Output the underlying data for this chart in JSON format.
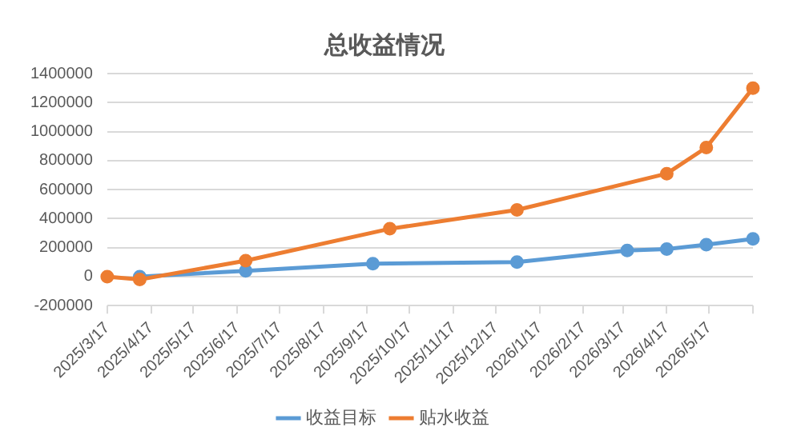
{
  "chart_data": {
    "type": "line",
    "title": "总收益情况",
    "series": [
      {
        "name": "收益目标",
        "color": "#5b9bd5",
        "x": [
          "2025-04-09",
          "2025-06-23",
          "2025-09-21",
          "2026-01-01",
          "2026-03-20",
          "2026-04-17",
          "2026-05-15",
          "2026-06-17"
        ],
        "values": [
          0,
          40000,
          90000,
          100000,
          180000,
          190000,
          220000,
          260000
        ]
      },
      {
        "name": "贴水收益",
        "color": "#ed7d31",
        "x": [
          "2025-03-17",
          "2025-04-09",
          "2025-06-23",
          "2025-10-03",
          "2026-01-01",
          "2026-04-17",
          "2026-05-15",
          "2026-06-17"
        ],
        "values": [
          0,
          -20000,
          110000,
          330000,
          460000,
          710000,
          890000,
          1300000
        ]
      }
    ],
    "xlim": [
      "2025-03-17",
      "2026-06-17"
    ],
    "xticks": [
      {
        "value": "2025-03-17",
        "label": "2025/3/17"
      },
      {
        "value": "2025-04-17",
        "label": "2025/4/17"
      },
      {
        "value": "2025-05-17",
        "label": "2025/5/17"
      },
      {
        "value": "2025-06-17",
        "label": "2025/6/17"
      },
      {
        "value": "2025-07-17",
        "label": "2025/7/17"
      },
      {
        "value": "2025-08-17",
        "label": "2025/8/17"
      },
      {
        "value": "2025-09-17",
        "label": "2025/9/17"
      },
      {
        "value": "2025-10-17",
        "label": "2025/10/17"
      },
      {
        "value": "2025-11-17",
        "label": "2025/11/17"
      },
      {
        "value": "2025-12-17",
        "label": "2025/12/17"
      },
      {
        "value": "2026-01-17",
        "label": "2026/1/17"
      },
      {
        "value": "2026-02-17",
        "label": "2026/2/17"
      },
      {
        "value": "2026-03-17",
        "label": "2026/3/17"
      },
      {
        "value": "2026-04-17",
        "label": "2026/4/17"
      },
      {
        "value": "2026-05-17",
        "label": "2026/5/17"
      },
      {
        "value": "2026-06-17",
        "label": null
      }
    ],
    "ylim": [
      -200000,
      1400000
    ],
    "yticks": [
      -200000,
      0,
      200000,
      400000,
      600000,
      800000,
      1000000,
      1200000,
      1400000
    ],
    "grid": "y",
    "legend": "bottom",
    "marker": "circle",
    "line_style": "solid"
  }
}
